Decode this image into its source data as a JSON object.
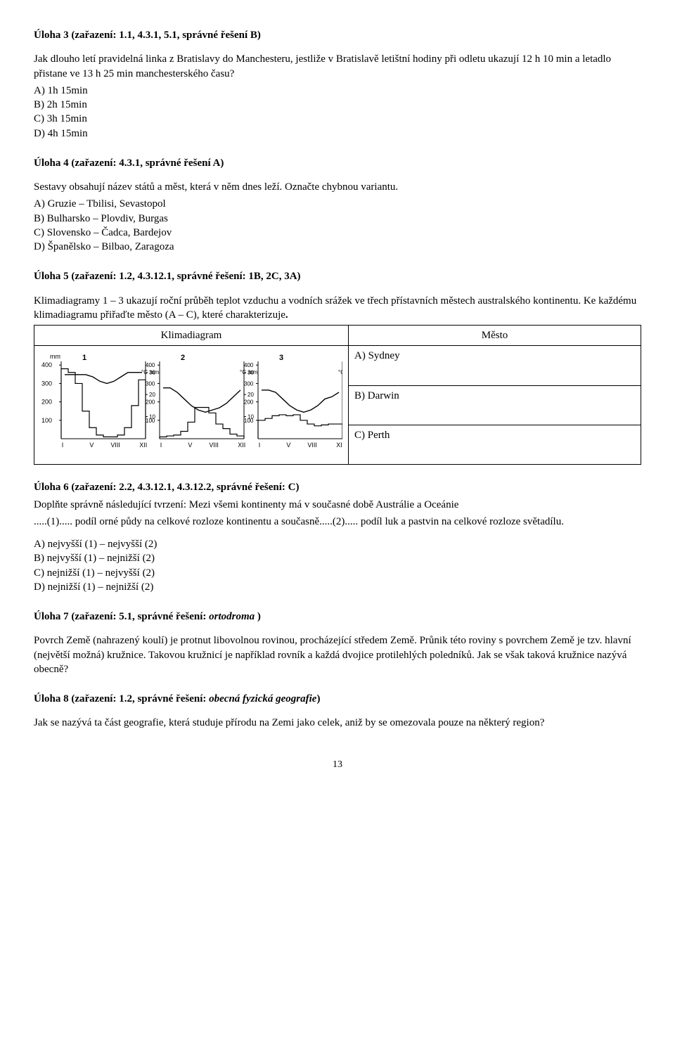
{
  "task3": {
    "title": "Úloha 3 (zařazení: 1.1, 4.3.1, 5.1, správné řešení B)",
    "question": "Jak dlouho letí pravidelná linka z Bratislavy do Manchesteru, jestliže v Bratislavě letištní hodiny při odletu ukazují 12 h 10 min a letadlo přistane ve 13 h 25 min manchesterského času?",
    "options": [
      "A)  1h 15min",
      "B)  2h 15min",
      "C)  3h 15min",
      "D)  4h 15min"
    ]
  },
  "task4": {
    "title": "Úloha 4 (zařazení: 4.3.1, správné řešení A)",
    "question": "Sestavy obsahují název států a měst, která v něm dnes leží. Označte chybnou variantu.",
    "options": [
      "A)  Gruzie – Tbilisi, Sevastopol",
      "B)  Bulharsko – Plovdiv, Burgas",
      "C)  Slovensko – Čadca, Bardejov",
      "D)  Španělsko – Bilbao, Zaragoza"
    ]
  },
  "task5": {
    "title": "Úloha 5 (zařazení: 1.2, 4.3.12.1, správné řešení: 1B, 2C, 3A)",
    "intro1": "Klimadiagramy 1 – 3 ukazují roční průběh teplot vzduchu a vodních srážek ve třech přístavních městech australského kontinentu. Ke každému klimadiagramu přiřaďte město (A – C), které charakterizuje",
    "intro_end": ".",
    "header_left": "Klimadiagram",
    "header_right": "Město",
    "cities": [
      "A)  Sydney",
      "B)  Darwin",
      "C)  Perth"
    ],
    "chart": {
      "background": "#ffffff",
      "axis_color": "#000000",
      "line_color": "#000000",
      "font_size": 9,
      "mm_label": "mm",
      "c_label": "°C",
      "panels": [
        "1",
        "2",
        "3"
      ],
      "mm_ticks": [
        100,
        200,
        300,
        400
      ],
      "c_ticks": [
        10,
        20,
        30
      ],
      "x_labels": [
        "I",
        "V",
        "VIII",
        "XII"
      ],
      "precip": {
        "1": [
          380,
          360,
          300,
          150,
          60,
          20,
          10,
          10,
          20,
          60,
          180,
          320
        ],
        "2": [
          10,
          15,
          20,
          40,
          90,
          170,
          170,
          140,
          80,
          55,
          25,
          15
        ],
        "3": [
          100,
          110,
          125,
          130,
          125,
          130,
          100,
          80,
          70,
          75,
          80,
          80
        ]
      },
      "temp": {
        "1": [
          29,
          29,
          29,
          29,
          28,
          26,
          25,
          26,
          28,
          30,
          30,
          30
        ],
        "2": [
          23,
          23,
          21,
          18,
          15,
          13,
          12,
          13,
          14,
          16,
          19,
          22
        ],
        "3": [
          22,
          22,
          21,
          18,
          15,
          13,
          12,
          13,
          15,
          18,
          19,
          21
        ]
      },
      "mm_max": 420,
      "c_max": 35
    }
  },
  "task6": {
    "title": "Úloha 6 (zařazení: 2.2, 4.3.12.1, 4.3.12.2, správné řešení: C)",
    "line1a": "Doplňte správně následující tvrzení: Mezi všemi kontinenty má v současné době Austrálie a Oceánie",
    "line2": ".....(1)..... podíl orné půdy na celkové rozloze kontinentu a současně.....(2)..... podíl luk a pastvin na celkové rozloze světadílu.",
    "options": [
      "A)  nejvyšší (1) – nejvyšší (2)",
      "B)  nejvyšší (1) – nejnižší (2)",
      "C)  nejnižší (1) – nejvyšší (2)",
      "D)  nejnižší (1) – nejnižší (2)"
    ]
  },
  "task7": {
    "title_a": "Úloha 7 (zařazení: 5.1, správné řešení: ",
    "title_i": "ortodroma ",
    "title_b": ")",
    "text": "Povrch Země (nahrazený koulí) je protnut libovolnou rovinou, procházející středem Země. Průnik této roviny s povrchem Země je tzv. hlavní (největší možná) kružnice. Takovou kružnicí je například rovník a každá dvojice protilehlých poledníků. Jak se však taková kružnice nazývá obecně?"
  },
  "task8": {
    "title_a": "Úloha 8 (zařazení: 1.2, správné řešení: ",
    "title_i": "obecná fyzická geografie",
    "title_b": ")",
    "text": "Jak se nazývá ta část geografie, která studuje přírodu na Zemi jako celek, aniž by se omezovala pouze na některý region?"
  },
  "page": "13"
}
